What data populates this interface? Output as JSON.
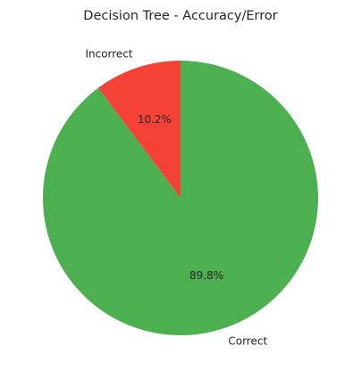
{
  "chart_data": {
    "type": "pie",
    "title": "Decision Tree - Accuracy/Error",
    "slices": [
      {
        "label": "Correct",
        "value": 89.8,
        "pct_label": "89.8%",
        "color": "#4caf50"
      },
      {
        "label": "Incorrect",
        "value": 10.2,
        "pct_label": "10.2%",
        "color": "#f44336"
      }
    ],
    "start_angle_deg": 90,
    "direction": "clockwise",
    "legend": "none"
  }
}
